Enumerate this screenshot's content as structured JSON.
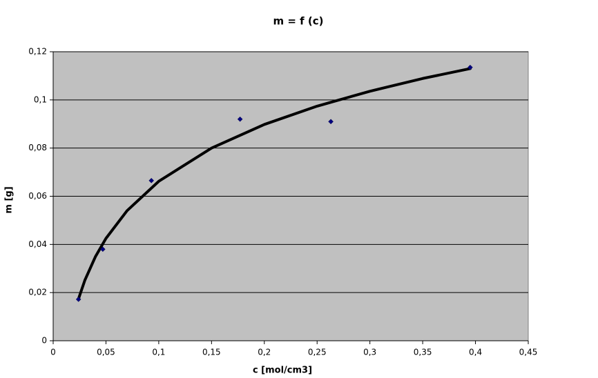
{
  "chart_data": {
    "type": "scatter",
    "title": "m = f (c)",
    "xlabel": "c [mol/cm3]",
    "ylabel": "m [g]",
    "x": [
      0.024,
      0.047,
      0.093,
      0.177,
      0.263,
      0.395
    ],
    "values": [
      0.0172,
      0.038,
      0.0665,
      0.092,
      0.091,
      0.1135
    ],
    "color": "#000080",
    "trendline": {
      "color": "#000000",
      "x": [
        0.024,
        0.03,
        0.04,
        0.05,
        0.07,
        0.1,
        0.15,
        0.2,
        0.25,
        0.3,
        0.35,
        0.395
      ],
      "values": [
        0.0174,
        0.0251,
        0.0349,
        0.0425,
        0.054,
        0.0662,
        0.08,
        0.0898,
        0.0974,
        0.1036,
        0.1089,
        0.113
      ]
    },
    "xlim": [
      0,
      0.45
    ],
    "ylim": [
      0,
      0.12
    ],
    "xticks": [
      0,
      {
        "value": 0.05,
        "label": "0,05"
      },
      {
        "value": 0.1,
        "label": "0,1"
      },
      {
        "value": 0.15,
        "label": "0,15"
      },
      {
        "value": 0.2,
        "label": "0,2"
      },
      {
        "value": 0.25,
        "label": "0,25"
      },
      {
        "value": 0.3,
        "label": "0,3"
      },
      {
        "value": 0.35,
        "label": "0,35"
      },
      {
        "value": 0.4,
        "label": "0,4"
      },
      {
        "value": 0.45,
        "label": "0,45"
      }
    ],
    "yticks": [
      0,
      {
        "value": 0.02,
        "label": "0,02"
      },
      {
        "value": 0.04,
        "label": "0,04"
      },
      {
        "value": 0.06,
        "label": "0,06"
      },
      {
        "value": 0.08,
        "label": "0,08"
      },
      {
        "value": 0.1,
        "label": "0,1"
      },
      {
        "value": 0.12,
        "label": "0,12"
      }
    ],
    "grid": true,
    "plot_background": "#c0c0c0"
  }
}
